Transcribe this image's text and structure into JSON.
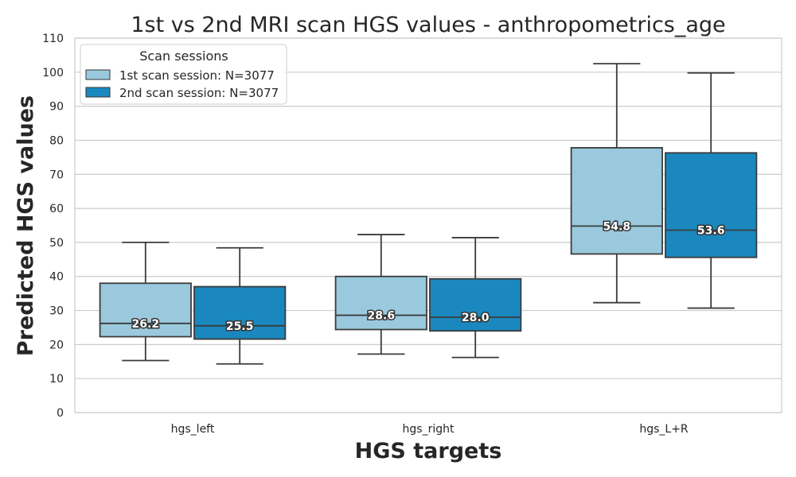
{
  "chart_data": {
    "type": "box",
    "title": "1st vs 2nd MRI scan HGS values - anthropometrics_age",
    "xlabel": "HGS targets",
    "ylabel": "Predicted HGS values",
    "categories": [
      "hgs_left",
      "hgs_right",
      "hgs_L+R"
    ],
    "ylim": [
      0,
      110
    ],
    "yticks": [
      0,
      10,
      20,
      30,
      40,
      50,
      60,
      70,
      80,
      90,
      100,
      110
    ],
    "grid": true,
    "legend": {
      "title": "Scan sessions",
      "placement": "top-left"
    },
    "series": [
      {
        "name": "1st scan session: N=3077",
        "color": "#9ac9de",
        "boxes": [
          {
            "whisker_low": 15.3,
            "q1": 22.3,
            "median": 26.2,
            "q3": 38.0,
            "whisker_high": 50.0,
            "label": "26.2"
          },
          {
            "whisker_low": 17.2,
            "q1": 24.4,
            "median": 28.6,
            "q3": 40.0,
            "whisker_high": 52.3,
            "label": "28.6"
          },
          {
            "whisker_low": 32.3,
            "q1": 46.6,
            "median": 54.8,
            "q3": 77.8,
            "whisker_high": 102.5,
            "label": "54.8"
          }
        ]
      },
      {
        "name": "2nd scan session: N=3077",
        "color": "#1a88bf",
        "boxes": [
          {
            "whisker_low": 14.3,
            "q1": 21.6,
            "median": 25.5,
            "q3": 37.0,
            "whisker_high": 48.4,
            "label": "25.5"
          },
          {
            "whisker_low": 16.2,
            "q1": 24.0,
            "median": 28.0,
            "q3": 39.3,
            "whisker_high": 51.4,
            "label": "28.0"
          },
          {
            "whisker_low": 30.7,
            "q1": 45.6,
            "median": 53.6,
            "q3": 76.3,
            "whisker_high": 99.8,
            "label": "53.6"
          }
        ]
      }
    ]
  }
}
